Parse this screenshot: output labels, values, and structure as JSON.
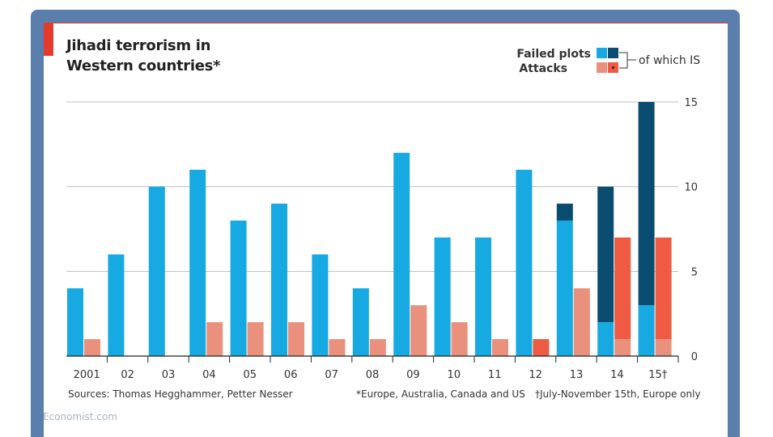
{
  "header": {
    "title": "Jihadi terrorism in Western countries*"
  },
  "legend": {
    "failed_plots": "Failed plots",
    "attacks": "Attacks",
    "of_which_is": "of which IS"
  },
  "footer": {
    "sources": "Sources: Thomas Hegghammer, Petter Nesser",
    "footnote1": "*Europe, Australia, Canada and US",
    "footnote2": "†July-November 15th, Europe only",
    "brand": "Economist.com"
  },
  "colors": {
    "failed_plots": "#17a9e1",
    "failed_plots_is": "#0a4c6f",
    "attacks": "#e9917c",
    "attacks_is": "#ef5a42",
    "accent": "#e63a2e",
    "frame": "#5b7fad",
    "grid": "#bfbfbf"
  },
  "chart_data": {
    "type": "bar",
    "title": "Jihadi terrorism in Western countries*",
    "categories": [
      "2001",
      "02",
      "03",
      "04",
      "05",
      "06",
      "07",
      "08",
      "09",
      "10",
      "11",
      "12",
      "13",
      "14",
      "15†"
    ],
    "series": [
      {
        "name": "Failed plots",
        "values": [
          4,
          6,
          10,
          11,
          8,
          9,
          6,
          4,
          12,
          7,
          7,
          11,
          9,
          10,
          15
        ]
      },
      {
        "name": "Failed plots of which IS",
        "values": [
          0,
          0,
          0,
          0,
          0,
          0,
          0,
          0,
          0,
          0,
          0,
          0,
          1,
          8,
          12
        ]
      },
      {
        "name": "Attacks",
        "values": [
          1,
          0,
          0,
          2,
          2,
          2,
          1,
          1,
          3,
          2,
          1,
          1,
          4,
          7,
          7
        ]
      },
      {
        "name": "Attacks of which IS",
        "values": [
          0,
          0,
          0,
          0,
          0,
          0,
          0,
          0,
          0,
          0,
          0,
          1,
          0,
          6,
          6
        ]
      }
    ],
    "yticks": [
      0,
      5,
      10,
      15
    ],
    "ylim": [
      0,
      15
    ],
    "y_axis_side": "right",
    "grid": true,
    "legend_position": "top-right"
  }
}
